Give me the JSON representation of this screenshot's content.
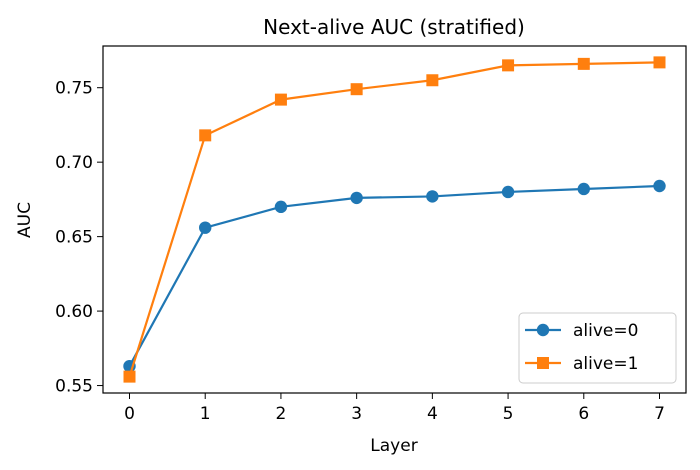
{
  "chart_data": {
    "type": "line",
    "title": "Next-alive AUC (stratified)",
    "xlabel": "Layer",
    "ylabel": "AUC",
    "x": [
      0,
      1,
      2,
      3,
      4,
      5,
      6,
      7
    ],
    "xlim": [
      -0.35,
      7.35
    ],
    "ylim": [
      0.545,
      0.778
    ],
    "xticks": [
      0,
      1,
      2,
      3,
      4,
      5,
      6,
      7
    ],
    "yticks": [
      0.55,
      0.6,
      0.65,
      0.7,
      0.75
    ],
    "ytick_labels": [
      "0.55",
      "0.60",
      "0.65",
      "0.70",
      "0.75"
    ],
    "grid": false,
    "legend_position": "lower-right",
    "series": [
      {
        "name": "alive=0",
        "color": "#1f77b4",
        "marker": "circle",
        "values": [
          0.563,
          0.656,
          0.67,
          0.676,
          0.677,
          0.68,
          0.682,
          0.684
        ]
      },
      {
        "name": "alive=1",
        "color": "#ff7f0e",
        "marker": "square",
        "values": [
          0.556,
          0.718,
          0.742,
          0.749,
          0.755,
          0.765,
          0.766,
          0.767
        ]
      }
    ]
  }
}
